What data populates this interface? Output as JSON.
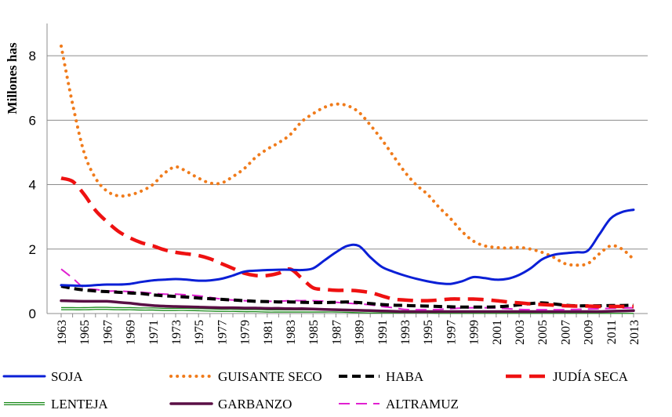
{
  "chart_data": {
    "type": "line",
    "title": "",
    "xlabel": "",
    "ylabel": "Millones has",
    "ylim": [
      0,
      9
    ],
    "yticks": [
      0,
      2,
      4,
      6,
      8
    ],
    "grid": "horizontal",
    "legend_position": "bottom",
    "x": [
      1963,
      1964,
      1965,
      1966,
      1967,
      1968,
      1969,
      1970,
      1971,
      1972,
      1973,
      1974,
      1975,
      1976,
      1977,
      1978,
      1979,
      1980,
      1981,
      1982,
      1983,
      1984,
      1985,
      1986,
      1987,
      1988,
      1989,
      1990,
      1991,
      1992,
      1993,
      1994,
      1995,
      1996,
      1997,
      1998,
      1999,
      2000,
      2001,
      2002,
      2003,
      2004,
      2005,
      2006,
      2007,
      2008,
      2009,
      2010,
      2011,
      2012,
      2013
    ],
    "xticklabels": [
      "1963",
      "1965",
      "1967",
      "1969",
      "1971",
      "1973",
      "1975",
      "1977",
      "1979",
      "1981",
      "1983",
      "1985",
      "1987",
      "1989",
      "1991",
      "1993",
      "1995",
      "1997",
      "1999",
      "2001",
      "2003",
      "2005",
      "2007",
      "2009",
      "2011",
      "2013"
    ],
    "series": [
      {
        "name": "SOJA",
        "color": "#0a1fd6",
        "style": "solid",
        "values": [
          0.88,
          0.87,
          0.86,
          0.88,
          0.9,
          0.9,
          0.92,
          0.98,
          1.03,
          1.05,
          1.07,
          1.05,
          1.02,
          1.03,
          1.08,
          1.18,
          1.3,
          1.33,
          1.35,
          1.36,
          1.36,
          1.35,
          1.4,
          1.65,
          1.9,
          2.1,
          2.1,
          1.75,
          1.45,
          1.3,
          1.18,
          1.08,
          1.0,
          0.94,
          0.92,
          1.0,
          1.13,
          1.1,
          1.05,
          1.08,
          1.2,
          1.4,
          1.68,
          1.82,
          1.87,
          1.9,
          1.95,
          2.45,
          2.95,
          3.15,
          3.22
        ]
      },
      {
        "name": "GUISANTE SECO",
        "color": "#f07b1b",
        "style": "dotted",
        "values": [
          8.3,
          6.5,
          5.0,
          4.2,
          3.8,
          3.65,
          3.68,
          3.8,
          4.0,
          4.35,
          4.55,
          4.4,
          4.2,
          4.05,
          4.05,
          4.25,
          4.5,
          4.85,
          5.1,
          5.3,
          5.55,
          5.95,
          6.2,
          6.4,
          6.5,
          6.45,
          6.25,
          5.85,
          5.4,
          4.9,
          4.4,
          4.0,
          3.7,
          3.3,
          2.95,
          2.55,
          2.25,
          2.1,
          2.05,
          2.03,
          2.05,
          2.0,
          1.9,
          1.75,
          1.55,
          1.5,
          1.55,
          1.85,
          2.1,
          2.0,
          1.68
        ]
      },
      {
        "name": "HABA",
        "color": "#000000",
        "style": "dashed",
        "values": [
          0.85,
          0.78,
          0.73,
          0.7,
          0.68,
          0.66,
          0.64,
          0.62,
          0.58,
          0.55,
          0.53,
          0.51,
          0.48,
          0.46,
          0.44,
          0.42,
          0.4,
          0.38,
          0.37,
          0.36,
          0.36,
          0.35,
          0.34,
          0.34,
          0.35,
          0.36,
          0.34,
          0.31,
          0.28,
          0.26,
          0.25,
          0.24,
          0.23,
          0.22,
          0.21,
          0.2,
          0.2,
          0.2,
          0.21,
          0.23,
          0.27,
          0.31,
          0.33,
          0.3,
          0.26,
          0.24,
          0.24,
          0.24,
          0.25,
          0.25,
          0.26
        ]
      },
      {
        "name": "JUDÍA SECA",
        "color": "#ee1111",
        "style": "longdash",
        "values": [
          4.2,
          4.1,
          3.7,
          3.2,
          2.85,
          2.55,
          2.35,
          2.2,
          2.1,
          1.98,
          1.9,
          1.85,
          1.8,
          1.7,
          1.55,
          1.4,
          1.25,
          1.18,
          1.18,
          1.25,
          1.38,
          1.1,
          0.8,
          0.75,
          0.72,
          0.72,
          0.7,
          0.65,
          0.55,
          0.45,
          0.42,
          0.4,
          0.4,
          0.42,
          0.45,
          0.45,
          0.45,
          0.43,
          0.4,
          0.36,
          0.33,
          0.3,
          0.28,
          0.26,
          0.24,
          0.23,
          0.23,
          0.22,
          0.22,
          0.22,
          0.22
        ]
      },
      {
        "name": "LENTEJA",
        "color": "#1a8a1a",
        "style": "double",
        "values": [
          0.15,
          0.15,
          0.15,
          0.16,
          0.16,
          0.15,
          0.15,
          0.14,
          0.14,
          0.13,
          0.13,
          0.13,
          0.12,
          0.11,
          0.1,
          0.1,
          0.09,
          0.09,
          0.08,
          0.08,
          0.08,
          0.08,
          0.08,
          0.08,
          0.08,
          0.07,
          0.06,
          0.05,
          0.05,
          0.05,
          0.05,
          0.05,
          0.05,
          0.04,
          0.04,
          0.04,
          0.04,
          0.04,
          0.04,
          0.04,
          0.04,
          0.04,
          0.04,
          0.04,
          0.04,
          0.04,
          0.04,
          0.04,
          0.04,
          0.04,
          0.04
        ]
      },
      {
        "name": "GARBANZO",
        "color": "#5a0f45",
        "style": "solid-thick",
        "values": [
          0.4,
          0.39,
          0.38,
          0.38,
          0.38,
          0.35,
          0.32,
          0.28,
          0.25,
          0.23,
          0.22,
          0.21,
          0.2,
          0.19,
          0.18,
          0.18,
          0.17,
          0.17,
          0.16,
          0.16,
          0.15,
          0.15,
          0.14,
          0.13,
          0.12,
          0.11,
          0.1,
          0.09,
          0.08,
          0.07,
          0.06,
          0.06,
          0.06,
          0.06,
          0.06,
          0.06,
          0.06,
          0.06,
          0.06,
          0.06,
          0.06,
          0.06,
          0.06,
          0.06,
          0.06,
          0.06,
          0.06,
          0.06,
          0.07,
          0.08,
          0.09
        ]
      },
      {
        "name": "ALTRAMUZ",
        "color": "#e020d0",
        "style": "medium-dash",
        "values": [
          1.38,
          1.1,
          0.8,
          0.75,
          0.7,
          0.7,
          0.68,
          0.66,
          0.63,
          0.6,
          0.6,
          0.58,
          0.55,
          0.5,
          0.45,
          0.42,
          0.4,
          0.38,
          0.38,
          0.38,
          0.4,
          0.4,
          0.4,
          0.38,
          0.35,
          0.32,
          0.3,
          0.27,
          0.22,
          0.18,
          0.13,
          0.12,
          0.12,
          0.13,
          0.15,
          0.17,
          0.18,
          0.18,
          0.17,
          0.15,
          0.13,
          0.12,
          0.12,
          0.12,
          0.12,
          0.13,
          0.14,
          0.15,
          0.16,
          0.17,
          0.18
        ]
      }
    ]
  }
}
